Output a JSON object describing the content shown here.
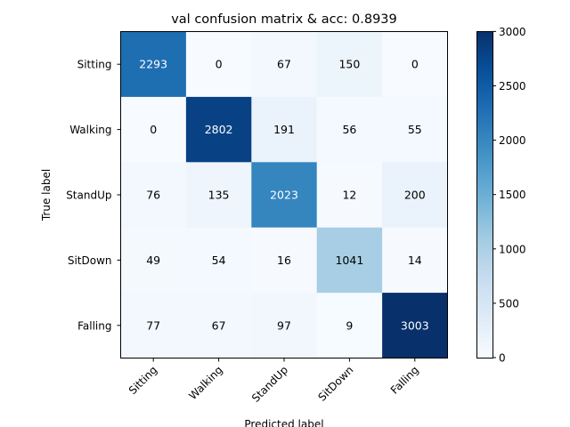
{
  "chart_data": {
    "type": "heatmap",
    "title": "val confusion matrix & acc: 0.8939",
    "xlabel": "Predicted label",
    "ylabel": "True label",
    "row_labels": [
      "Sitting",
      "Walking",
      "StandUp",
      "SitDown",
      "Falling"
    ],
    "col_labels": [
      "Sitting",
      "Walking",
      "StandUp",
      "SitDown",
      "Falling"
    ],
    "values": [
      [
        2293,
        0,
        67,
        150,
        0
      ],
      [
        0,
        2802,
        191,
        56,
        55
      ],
      [
        76,
        135,
        2023,
        12,
        200
      ],
      [
        49,
        54,
        16,
        1041,
        14
      ],
      [
        77,
        67,
        97,
        9,
        3003
      ]
    ],
    "colorscale": "Blues",
    "color_range": [
      0,
      3003
    ],
    "colorbar": {
      "ticks": [
        0,
        500,
        1000,
        1500,
        2000,
        2500,
        3000
      ]
    },
    "grid": false,
    "x_tick_rotation_deg": 45
  }
}
